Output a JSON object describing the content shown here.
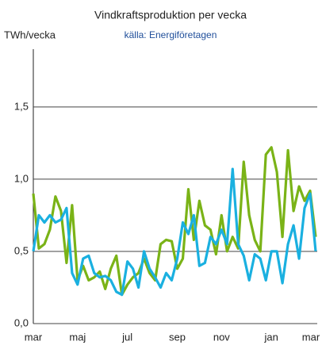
{
  "chart_data": {
    "type": "line",
    "title": "Vindkraftsproduktion per vecka",
    "subtitle": "källa: Energiföretagen",
    "y_label": "TWh/vecka",
    "categories": [
      "mar",
      null,
      null,
      null,
      null,
      null,
      null,
      null,
      "maj",
      null,
      null,
      null,
      null,
      null,
      null,
      null,
      null,
      "jul",
      null,
      null,
      null,
      null,
      null,
      null,
      null,
      null,
      "sep",
      null,
      null,
      null,
      null,
      null,
      null,
      null,
      "nov",
      null,
      null,
      null,
      null,
      null,
      null,
      null,
      null,
      "jan",
      null,
      null,
      null,
      null,
      null,
      null,
      null,
      "mar"
    ],
    "series": [
      {
        "color": "#7ab317",
        "values": [
          0.9,
          0.52,
          0.55,
          0.65,
          0.88,
          0.78,
          0.42,
          0.82,
          0.3,
          0.4,
          0.3,
          0.32,
          0.36,
          0.24,
          0.38,
          0.47,
          0.2,
          0.27,
          0.32,
          0.35,
          0.45,
          0.35,
          0.3,
          0.55,
          0.58,
          0.57,
          0.38,
          0.45,
          0.93,
          0.58,
          0.85,
          0.68,
          0.65,
          0.48,
          0.75,
          0.5,
          0.6,
          0.52,
          1.12,
          0.75,
          0.58,
          0.5,
          1.17,
          1.22,
          1.05,
          0.6,
          1.2,
          0.78,
          0.95,
          0.85,
          0.92,
          0.6
        ]
      },
      {
        "color": "#1ab0e0",
        "values": [
          0.5,
          0.75,
          0.7,
          0.75,
          0.7,
          0.72,
          0.8,
          0.35,
          0.27,
          0.45,
          0.47,
          0.35,
          0.32,
          0.33,
          0.3,
          0.22,
          0.2,
          0.43,
          0.38,
          0.25,
          0.5,
          0.38,
          0.32,
          0.25,
          0.35,
          0.3,
          0.45,
          0.7,
          0.62,
          0.75,
          0.4,
          0.42,
          0.6,
          0.55,
          0.65,
          0.55,
          1.07,
          0.55,
          0.47,
          0.3,
          0.48,
          0.45,
          0.3,
          0.5,
          0.5,
          0.28,
          0.55,
          0.68,
          0.45,
          0.8,
          0.9,
          0.5
        ]
      }
    ],
    "ylim": [
      0,
      1.9
    ],
    "yticks": [
      {
        "value": 0,
        "label": "0,0"
      },
      {
        "value": 0.5,
        "label": "0,5"
      },
      {
        "value": 1,
        "label": "1,0"
      },
      {
        "value": 1.5,
        "label": "1,5"
      }
    ],
    "grid": true
  }
}
